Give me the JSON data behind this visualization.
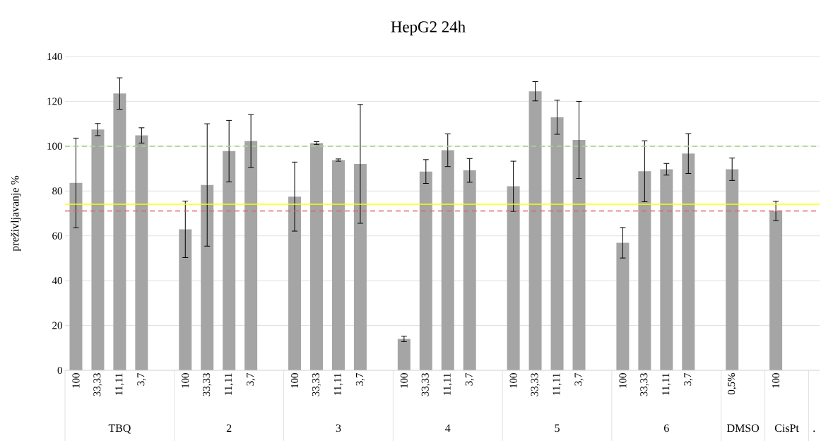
{
  "chart_data": {
    "type": "bar",
    "title": "HepG2 24h",
    "ylabel": "preživljavanje %",
    "categories": [
      "100",
      "33,33",
      "11,11",
      "3,7",
      null,
      "100",
      "33,33",
      "11,11",
      "3,7",
      null,
      "100",
      "33,33",
      "11,11",
      "3,7",
      null,
      "100",
      "33,33",
      "11,11",
      "3,7",
      null,
      "100",
      "33,33",
      "11,11",
      "3,7",
      null,
      "100",
      "33,33",
      "11,11",
      "3,7",
      null,
      "0,5%",
      null,
      "100",
      null,
      null
    ],
    "values": [
      83.6,
      107.4,
      123.5,
      104.8,
      null,
      62.9,
      82.7,
      97.8,
      102.3,
      null,
      77.5,
      101.4,
      93.8,
      92.1,
      null,
      14.0,
      88.7,
      98.2,
      89.2,
      null,
      82.1,
      124.5,
      112.9,
      102.8,
      null,
      56.9,
      88.8,
      89.7,
      96.7,
      null,
      89.7,
      null,
      71.1,
      null,
      null
    ],
    "errors": [
      20.0,
      2.7,
      7.0,
      3.4,
      null,
      12.6,
      27.3,
      13.7,
      11.8,
      null,
      15.4,
      0.6,
      0.5,
      26.5,
      null,
      1.2,
      5.3,
      7.3,
      5.3,
      null,
      11.2,
      4.3,
      7.6,
      17.2,
      null,
      6.8,
      13.6,
      2.6,
      8.9,
      null,
      5.0,
      null,
      4.3,
      null,
      null
    ],
    "color": "#a5a5a5",
    "ylim": [
      0,
      140
    ],
    "yticks": [
      0,
      20,
      40,
      60,
      80,
      100,
      120,
      140
    ],
    "grid": "y",
    "ref_lines": [
      {
        "axis": "y",
        "value": 100,
        "color": "#a9d18e",
        "line_style": "dashed"
      },
      {
        "axis": "y",
        "value": 74.1,
        "color": "#ffff00",
        "line_style": "solid"
      },
      {
        "axis": "y",
        "value": 71.1,
        "color": "#e06666",
        "line_style": "dashed"
      }
    ],
    "annotations": [
      "TBQ",
      "2",
      "3",
      "4",
      "5",
      "6",
      "DMSO",
      "CisPt",
      "."
    ]
  }
}
